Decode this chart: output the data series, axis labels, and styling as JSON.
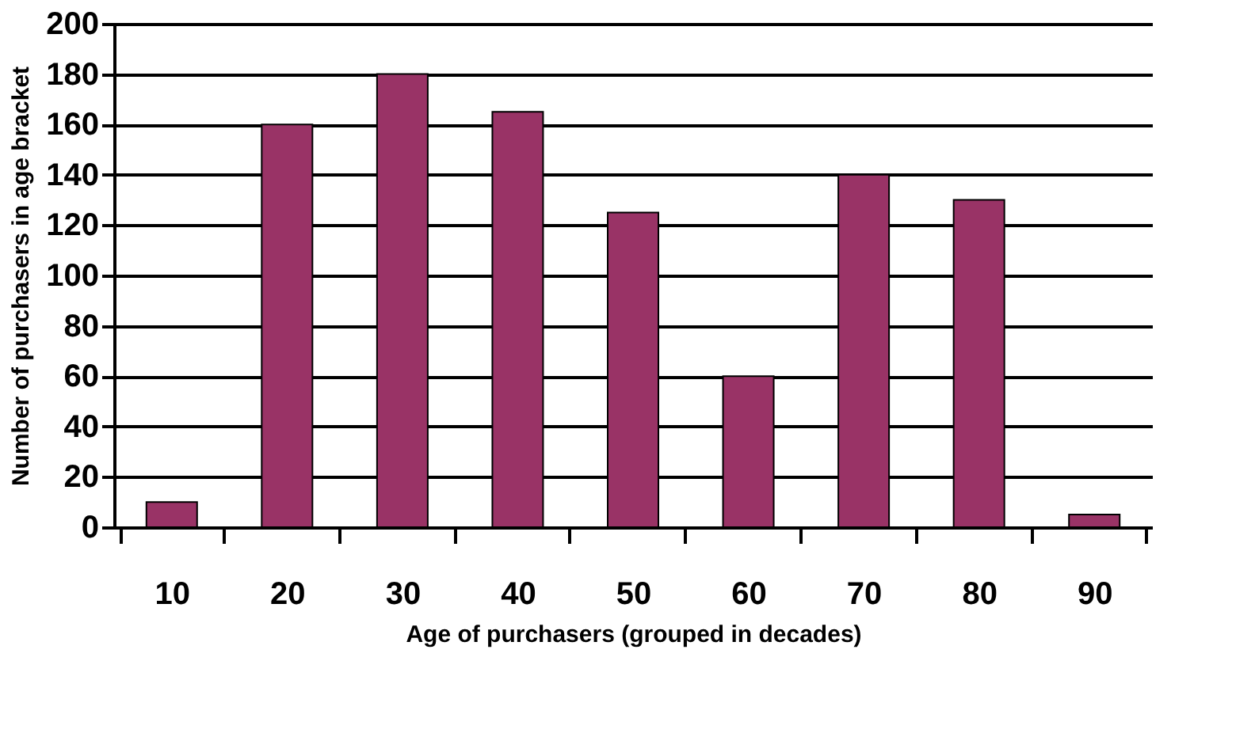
{
  "chart_data": {
    "type": "bar",
    "xlabel": "Age  of  purchasers (grouped in decades)",
    "ylabel": "Number of purchasers in age bracket",
    "categories": [
      "10",
      "20",
      "30",
      "40",
      "50",
      "60",
      "70",
      "80",
      "90"
    ],
    "values": [
      10,
      160,
      180,
      165,
      125,
      60,
      140,
      130,
      5
    ],
    "color": "#993366",
    "ylim": [
      0,
      200
    ],
    "yticks": [
      0,
      20,
      40,
      60,
      80,
      100,
      120,
      140,
      160,
      180,
      200
    ],
    "grid": "y"
  }
}
